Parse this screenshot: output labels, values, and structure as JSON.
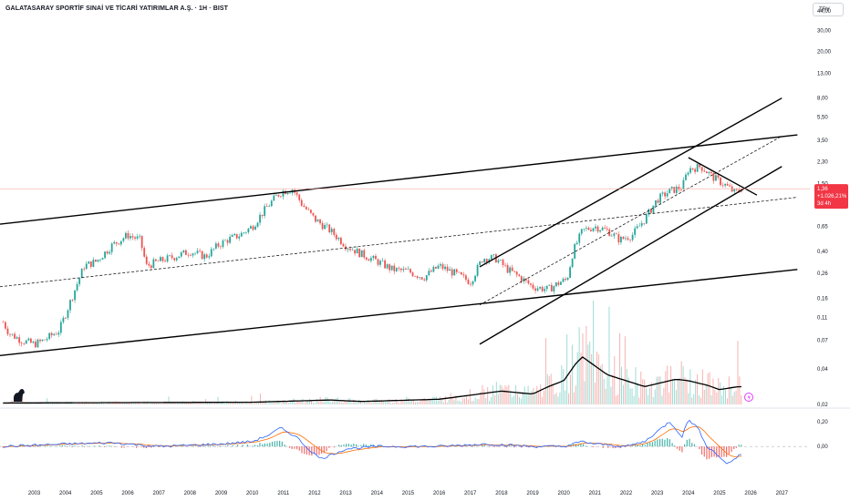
{
  "header": {
    "title": "GALATASARAY SPORTİF SINAİ VE TİCARİ YATIRIMLAR A.Ş. · 1H · BIST",
    "currency": "TRY"
  },
  "colors": {
    "up": "#26a69a",
    "down": "#ef5350",
    "macd": "#2962ff",
    "signal": "#ff6d00",
    "badge": "#f23645",
    "trendline": "#000000"
  },
  "price_badge": {
    "price": "1,36",
    "change": "+1.026,21%",
    "countdown": "3d 4h"
  },
  "chart_data": [
    {
      "type": "candlestick",
      "title": "",
      "scale": "log",
      "ylim": [
        0.02,
        44
      ],
      "xlim": [
        2001.9,
        2027.9
      ],
      "y_ticks": [
        "44,00",
        "30,00",
        "20,00",
        "13,00",
        "8,00",
        "5,50",
        "3,50",
        "2,30",
        "1,50",
        "0,65",
        "0,40",
        "0,26",
        "0,16",
        "0,11",
        "0,07",
        "0,04",
        "0,02"
      ],
      "y_tick_values": [
        44,
        30,
        20,
        13,
        8,
        5.5,
        3.5,
        2.3,
        1.5,
        0.65,
        0.4,
        0.26,
        0.16,
        0.11,
        0.07,
        0.04,
        0.02
      ],
      "x_ticks": [
        "2003",
        "2004",
        "2005",
        "2006",
        "2007",
        "2008",
        "2009",
        "2010",
        "2011",
        "2012",
        "2013",
        "2014",
        "2015",
        "2016",
        "2017",
        "2018",
        "2019",
        "2020",
        "2021",
        "2022",
        "2023",
        "2024",
        "2025",
        "2026",
        "2027"
      ],
      "x_tick_values": [
        2003,
        2004,
        2005,
        2006,
        2007,
        2008,
        2009,
        2010,
        2011,
        2012,
        2013,
        2014,
        2015,
        2016,
        2017,
        2018,
        2019,
        2020,
        2021,
        2022,
        2023,
        2024,
        2025,
        2026,
        2027
      ],
      "last_price": 1.36,
      "price_path": {
        "t": [
          2002.0,
          2002.2,
          2002.6,
          2003.0,
          2003.3,
          2003.8,
          2004.2,
          2004.6,
          2005.0,
          2005.5,
          2006.0,
          2006.4,
          2006.6,
          2007.0,
          2007.5,
          2008.0,
          2008.5,
          2008.9,
          2009.2,
          2009.6,
          2010.0,
          2010.4,
          2010.8,
          2011.0,
          2011.3,
          2011.6,
          2012.0,
          2012.5,
          2013.0,
          2013.5,
          2014.0,
          2014.5,
          2015.0,
          2015.5,
          2016.0,
          2016.5,
          2017.0,
          2017.4,
          2017.8,
          2018.2,
          2018.6,
          2019.0,
          2019.5,
          2019.9,
          2020.1,
          2020.3,
          2020.6,
          2021.0,
          2021.4,
          2021.8,
          2022.2,
          2022.6,
          2023.0,
          2023.4,
          2023.8,
          2024.0,
          2024.4,
          2024.8,
          2025.2,
          2025.5,
          2025.7
        ],
        "p": [
          0.1,
          0.08,
          0.07,
          0.065,
          0.07,
          0.085,
          0.16,
          0.3,
          0.33,
          0.45,
          0.55,
          0.5,
          0.3,
          0.33,
          0.36,
          0.4,
          0.36,
          0.45,
          0.5,
          0.55,
          0.65,
          0.9,
          1.2,
          1.3,
          1.35,
          1.0,
          0.75,
          0.6,
          0.45,
          0.38,
          0.33,
          0.28,
          0.27,
          0.24,
          0.3,
          0.26,
          0.22,
          0.35,
          0.35,
          0.28,
          0.24,
          0.2,
          0.19,
          0.22,
          0.23,
          0.4,
          0.6,
          0.65,
          0.6,
          0.5,
          0.55,
          0.75,
          1.1,
          1.3,
          1.4,
          2.0,
          2.1,
          1.7,
          1.45,
          1.25,
          1.36
        ]
      },
      "trendlines": [
        {
          "name": "upper-channel",
          "style": "solid",
          "p1": [
            2001.9,
            0.68
          ],
          "p2": [
            2027.5,
            3.9
          ]
        },
        {
          "name": "mid-channel",
          "style": "dashed",
          "p1": [
            2001.9,
            0.2
          ],
          "p2": [
            2027.5,
            1.15
          ]
        },
        {
          "name": "lower-channel",
          "style": "solid",
          "p1": [
            2001.9,
            0.052
          ],
          "p2": [
            2027.5,
            0.28
          ]
        },
        {
          "name": "rising-upper",
          "style": "solid",
          "p1": [
            2017.3,
            0.295
          ],
          "p2": [
            2027.0,
            8.0
          ]
        },
        {
          "name": "rising-mid",
          "style": "dashed",
          "p1": [
            2017.3,
            0.14
          ],
          "p2": [
            2027.0,
            3.8
          ]
        },
        {
          "name": "rising-lower",
          "style": "solid",
          "p1": [
            2017.3,
            0.065
          ],
          "p2": [
            2027.0,
            2.1
          ]
        },
        {
          "name": "falling-wedge-top",
          "style": "solid",
          "p1": [
            2024.0,
            2.5
          ],
          "p2": [
            2026.2,
            1.2
          ]
        }
      ],
      "volume": {
        "avg_path": {
          "t": [
            2002.0,
            2010.0,
            2012.5,
            2013.5,
            2016.0,
            2018.0,
            2019.0,
            2019.5,
            2020.0,
            2020.4,
            2020.6,
            2021.0,
            2021.4,
            2022.0,
            2022.6,
            2023.0,
            2023.6,
            2024.0,
            2024.6,
            2025.0,
            2025.6
          ],
          "v": [
            0.1,
            0.15,
            0.3,
            0.2,
            0.35,
            0.9,
            0.7,
            1.2,
            1.6,
            2.8,
            3.2,
            2.6,
            2.0,
            1.6,
            1.2,
            1.4,
            1.7,
            1.6,
            1.3,
            1.0,
            1.2
          ]
        }
      }
    },
    {
      "type": "line",
      "title": "",
      "ylim": [
        -0.3,
        0.28
      ],
      "y_ticks": [
        "0,20",
        "0,00"
      ],
      "y_tick_values": [
        0.2,
        0.0
      ],
      "series": [
        {
          "values": []
        },
        {
          "values": []
        }
      ],
      "macd_path": {
        "t": [
          2002.0,
          2004.0,
          2005.5,
          2007.0,
          2009.0,
          2010.0,
          2010.6,
          2010.9,
          2011.4,
          2011.8,
          2012.2,
          2012.6,
          2013.0,
          2014.0,
          2016.0,
          2017.5,
          2019.0,
          2020.0,
          2020.3,
          2020.6,
          2021.0,
          2022.0,
          2022.6,
          2023.0,
          2023.4,
          2023.8,
          2024.0,
          2024.3,
          2024.6,
          2025.0,
          2025.2,
          2025.5,
          2025.7
        ],
        "v": [
          0.0,
          0.02,
          0.03,
          0.0,
          0.02,
          0.04,
          0.1,
          0.15,
          0.08,
          -0.02,
          -0.1,
          -0.06,
          -0.02,
          0.0,
          0.0,
          0.02,
          0.0,
          0.0,
          0.02,
          0.04,
          0.02,
          0.0,
          0.04,
          0.12,
          0.2,
          0.08,
          0.22,
          0.15,
          0.0,
          -0.08,
          -0.14,
          -0.1,
          -0.06
        ]
      }
    }
  ]
}
